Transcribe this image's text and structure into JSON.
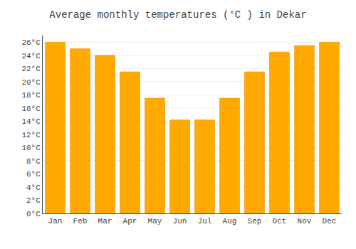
{
  "chart_data": {
    "type": "bar",
    "title": "Average monthly temperatures (°C ) in Dekar",
    "categories": [
      "Jan",
      "Feb",
      "Mar",
      "Apr",
      "May",
      "Jun",
      "Jul",
      "Aug",
      "Sep",
      "Oct",
      "Nov",
      "Dec"
    ],
    "values": [
      26,
      25,
      24,
      21.5,
      17.5,
      14.2,
      14.2,
      17.5,
      21.5,
      24.5,
      25.5,
      26
    ],
    "color": "#FFAA00",
    "ylim": [
      0,
      27
    ],
    "yticks": [
      {
        "value": 0,
        "label": "0°C"
      },
      {
        "value": 2,
        "label": "2°C"
      },
      {
        "value": 4,
        "label": "4°C"
      },
      {
        "value": 6,
        "label": "6°C"
      },
      {
        "value": 8,
        "label": "8°C"
      },
      {
        "value": 10,
        "label": "10°C"
      },
      {
        "value": 12,
        "label": "12°C"
      },
      {
        "value": 14,
        "label": "14°C"
      },
      {
        "value": 16,
        "label": "16°C"
      },
      {
        "value": 18,
        "label": "18°C"
      },
      {
        "value": 20,
        "label": "20°C"
      },
      {
        "value": 22,
        "label": "22°C"
      },
      {
        "value": 24,
        "label": "24°C"
      },
      {
        "value": 26,
        "label": "26°C"
      }
    ],
    "grid": true
  }
}
